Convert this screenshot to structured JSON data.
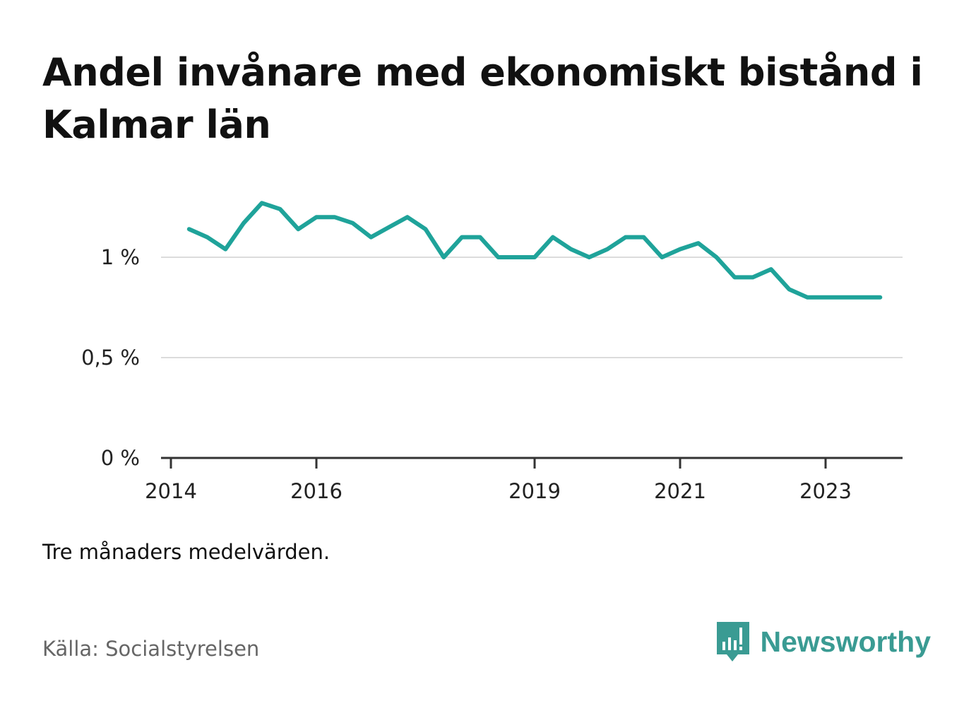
{
  "header": {
    "title": "Andel invånare med ekonomiskt bistånd i Kalmar län"
  },
  "footer": {
    "note": "Tre månaders medelvärden.",
    "source": "Källa: Socialstyrelsen",
    "brand": "Newsworthy",
    "brand_icon": "bar-chart-speech-bubble-icon",
    "brand_color": "#3a9b93"
  },
  "chart_data": {
    "type": "line",
    "title": "Andel invånare med ekonomiskt bistånd i Kalmar län",
    "xlabel": "",
    "ylabel": "",
    "x_tick_labels": [
      "2014",
      "2016",
      "2019",
      "2021",
      "2023"
    ],
    "y_tick_labels": [
      "0 %",
      "0,5 %",
      "1 %"
    ],
    "y_ticks": [
      0,
      0.5,
      1
    ],
    "ylim": [
      0,
      1.3
    ],
    "xlim": [
      "2014-01",
      "2024-01"
    ],
    "grid": true,
    "line_color": "#1fa39a",
    "series": [
      {
        "x": [
          "2014-04",
          "2014-07",
          "2014-10",
          "2015-01",
          "2015-04",
          "2015-07",
          "2015-10",
          "2016-01",
          "2016-04",
          "2016-07",
          "2016-10",
          "2017-01",
          "2017-04",
          "2017-07",
          "2017-10",
          "2018-01",
          "2018-04",
          "2018-07",
          "2018-10",
          "2019-01",
          "2019-04",
          "2019-07",
          "2019-10",
          "2020-01",
          "2020-04",
          "2020-07",
          "2020-10",
          "2021-01",
          "2021-04",
          "2021-07",
          "2021-10",
          "2022-01",
          "2022-04",
          "2022-07",
          "2022-10",
          "2023-01",
          "2023-04",
          "2023-07",
          "2023-10"
        ],
        "values": [
          1.14,
          1.1,
          1.04,
          1.17,
          1.27,
          1.24,
          1.14,
          1.2,
          1.2,
          1.17,
          1.1,
          1.15,
          1.2,
          1.14,
          1.0,
          1.1,
          1.1,
          1.0,
          1.0,
          1.0,
          1.1,
          1.04,
          1.0,
          1.04,
          1.1,
          1.1,
          1.0,
          1.04,
          1.07,
          1.0,
          0.9,
          0.9,
          0.94,
          0.84,
          0.8,
          0.8,
          0.8,
          0.8,
          0.8
        ]
      }
    ]
  }
}
